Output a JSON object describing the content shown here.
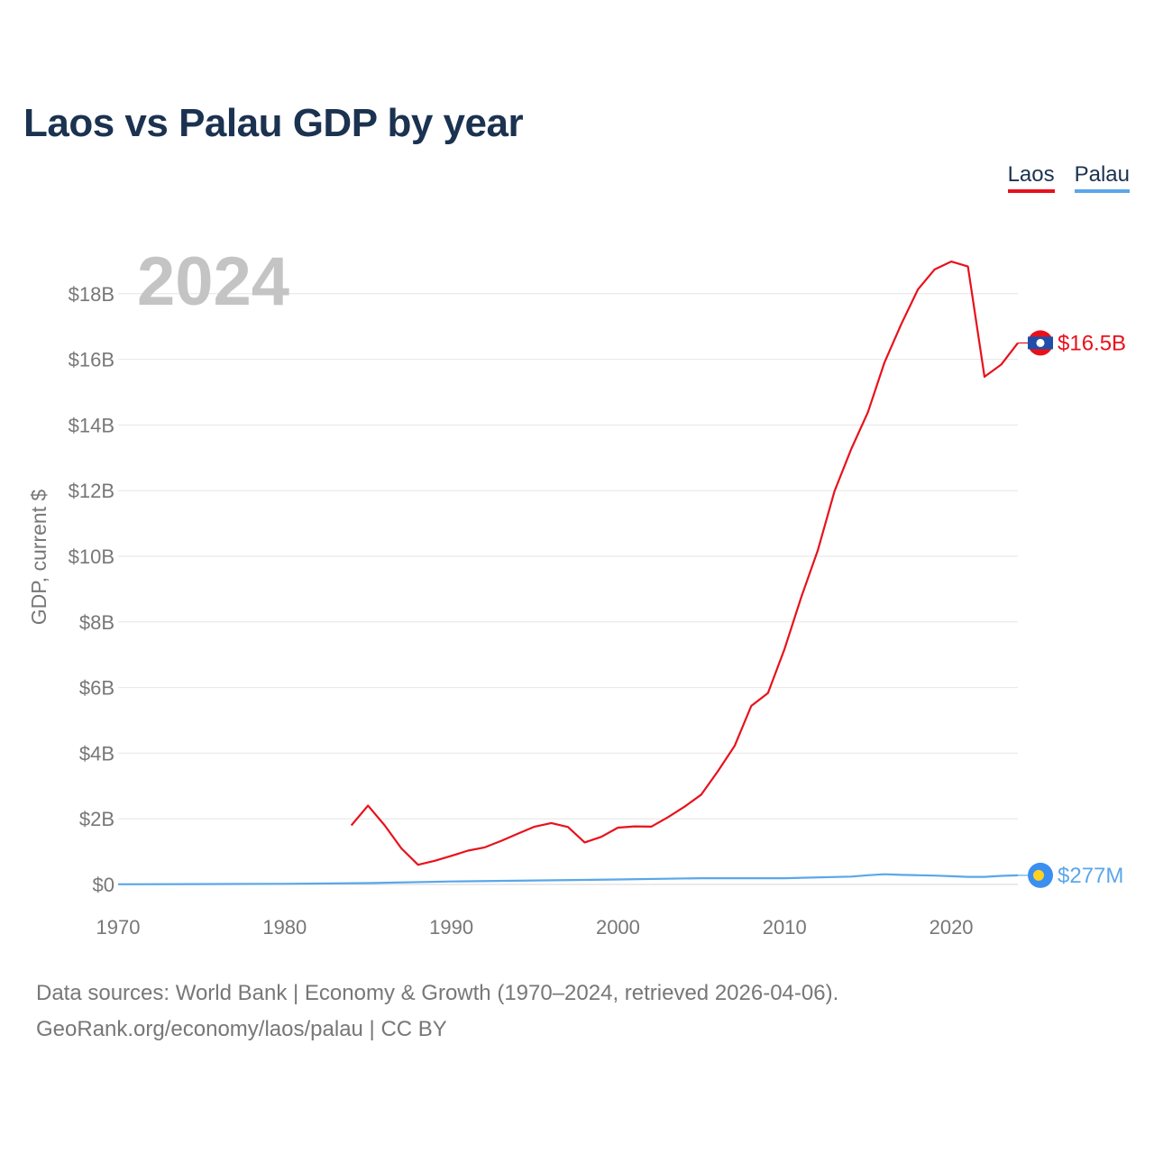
{
  "title": "Laos vs Palau GDP by year",
  "legend": [
    {
      "label": "Laos",
      "color": "#e8111b"
    },
    {
      "label": "Palau",
      "color": "#5aa7ea"
    }
  ],
  "footer": {
    "line1": "Data sources: World Bank | Economy & Growth (1970–2024, retrieved 2026-04-06).",
    "line2": "GeoRank.org/economy/laos/palau | CC BY"
  },
  "chart_data": {
    "type": "line",
    "title": "Laos vs Palau GDP by year",
    "year_watermark": "2024",
    "xlabel": "",
    "ylabel": "GDP, current $",
    "xlim": [
      1970,
      2024
    ],
    "ylim": [
      0,
      20000000000
    ],
    "x_ticks": [
      1970,
      1980,
      1990,
      2000,
      2010,
      2020
    ],
    "x_tick_labels": [
      "1970",
      "1980",
      "1990",
      "2000",
      "2010",
      "2020"
    ],
    "y_ticks": [
      0,
      2000000000,
      4000000000,
      6000000000,
      8000000000,
      10000000000,
      12000000000,
      14000000000,
      16000000000,
      18000000000
    ],
    "y_tick_labels": [
      "$0",
      "$2B",
      "$4B",
      "$6B",
      "$8B",
      "$10B",
      "$12B",
      "$14B",
      "$16B",
      "$18B"
    ],
    "grid": true,
    "series": [
      {
        "name": "Laos",
        "color": "#e8111b",
        "end_label": "$16.5B",
        "points": [
          [
            1984,
            1.8
          ],
          [
            1985,
            2.4
          ],
          [
            1986,
            1.8
          ],
          [
            1987,
            1.1
          ],
          [
            1988,
            0.6
          ],
          [
            1989,
            0.72
          ],
          [
            1990,
            0.87
          ],
          [
            1991,
            1.03
          ],
          [
            1992,
            1.13
          ],
          [
            1993,
            1.33
          ],
          [
            1994,
            1.55
          ],
          [
            1995,
            1.76
          ],
          [
            1996,
            1.87
          ],
          [
            1997,
            1.75
          ],
          [
            1998,
            1.28
          ],
          [
            1999,
            1.45
          ],
          [
            2000,
            1.73
          ],
          [
            2001,
            1.77
          ],
          [
            2002,
            1.76
          ],
          [
            2003,
            2.05
          ],
          [
            2004,
            2.37
          ],
          [
            2005,
            2.74
          ],
          [
            2006,
            3.45
          ],
          [
            2007,
            4.22
          ],
          [
            2008,
            5.44
          ],
          [
            2009,
            5.83
          ],
          [
            2010,
            7.18
          ],
          [
            2011,
            8.75
          ],
          [
            2012,
            10.19
          ],
          [
            2013,
            11.99
          ],
          [
            2014,
            13.27
          ],
          [
            2015,
            14.39
          ],
          [
            2016,
            15.91
          ],
          [
            2017,
            17.07
          ],
          [
            2018,
            18.13
          ],
          [
            2019,
            18.74
          ],
          [
            2020,
            18.98
          ],
          [
            2021,
            18.83
          ],
          [
            2022,
            15.47
          ],
          [
            2023,
            15.84
          ],
          [
            2024,
            16.5
          ]
        ]
      },
      {
        "name": "Palau",
        "color": "#5aa7ea",
        "end_label": "$277M",
        "points": [
          [
            1970,
            0.005
          ],
          [
            1975,
            0.01
          ],
          [
            1980,
            0.02
          ],
          [
            1985,
            0.04
          ],
          [
            1990,
            0.09
          ],
          [
            1995,
            0.12
          ],
          [
            2000,
            0.15
          ],
          [
            2005,
            0.19
          ],
          [
            2010,
            0.19
          ],
          [
            2014,
            0.24
          ],
          [
            2015,
            0.28
          ],
          [
            2016,
            0.31
          ],
          [
            2017,
            0.29
          ],
          [
            2018,
            0.28
          ],
          [
            2019,
            0.27
          ],
          [
            2020,
            0.25
          ],
          [
            2021,
            0.23
          ],
          [
            2022,
            0.23
          ],
          [
            2023,
            0.26
          ],
          [
            2024,
            0.277
          ]
        ]
      }
    ]
  }
}
